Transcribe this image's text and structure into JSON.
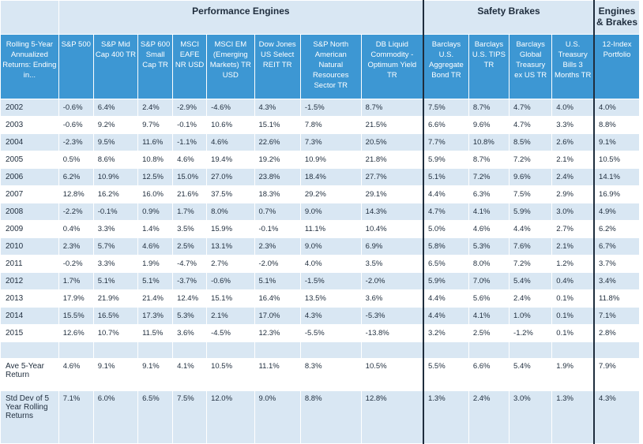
{
  "groups": {
    "engines": "Performance Engines",
    "brakes": "Safety Brakes",
    "both": "Engines & Brakes"
  },
  "columns": [
    "Rolling 5-Year Annualized Returns: Ending in...",
    "S&P 500",
    "S&P Mid Cap 400 TR",
    "S&P 600 Small Cap TR",
    "MSCI EAFE NR USD",
    "MSCI EM (Emerging Markets) TR USD",
    "Dow Jones US Select REIT TR",
    "S&P North American Natural Resources Sector TR",
    "DB Liquid Commodity - Optimum Yield TR",
    "Barclays U.S. Aggregate Bond TR",
    "Barclays U.S. TIPS TR",
    "Barclays Global Treasury ex US TR",
    "U.S. Treasury Bills 3 Months TR",
    "12-Index Portfolio"
  ],
  "rows": [
    [
      "2002",
      "-0.6%",
      "6.4%",
      "2.4%",
      "-2.9%",
      "-4.6%",
      "4.3%",
      "-1.5%",
      "8.7%",
      "7.5%",
      "8.7%",
      "4.7%",
      "4.0%",
      "4.0%"
    ],
    [
      "2003",
      "-0.6%",
      "9.2%",
      "9.7%",
      "-0.1%",
      "10.6%",
      "15.1%",
      "7.8%",
      "21.5%",
      "6.6%",
      "9.6%",
      "4.7%",
      "3.3%",
      "8.8%"
    ],
    [
      "2004",
      "-2.3%",
      "9.5%",
      "11.6%",
      "-1.1%",
      "4.6%",
      "22.6%",
      "7.3%",
      "20.5%",
      "7.7%",
      "10.8%",
      "8.5%",
      "2.6%",
      "9.1%"
    ],
    [
      "2005",
      "0.5%",
      "8.6%",
      "10.8%",
      "4.6%",
      "19.4%",
      "19.2%",
      "10.9%",
      "21.8%",
      "5.9%",
      "8.7%",
      "7.2%",
      "2.1%",
      "10.5%"
    ],
    [
      "2006",
      "6.2%",
      "10.9%",
      "12.5%",
      "15.0%",
      "27.0%",
      "23.8%",
      "18.4%",
      "27.7%",
      "5.1%",
      "7.2%",
      "9.6%",
      "2.4%",
      "14.1%"
    ],
    [
      "2007",
      "12.8%",
      "16.2%",
      "16.0%",
      "21.6%",
      "37.5%",
      "18.3%",
      "29.2%",
      "29.1%",
      "4.4%",
      "6.3%",
      "7.5%",
      "2.9%",
      "16.9%"
    ],
    [
      "2008",
      "-2.2%",
      "-0.1%",
      "0.9%",
      "1.7%",
      "8.0%",
      "0.7%",
      "9.0%",
      "14.3%",
      "4.7%",
      "4.1%",
      "5.9%",
      "3.0%",
      "4.9%"
    ],
    [
      "2009",
      "0.4%",
      "3.3%",
      "1.4%",
      "3.5%",
      "15.9%",
      "-0.1%",
      "11.1%",
      "10.4%",
      "5.0%",
      "4.6%",
      "4.4%",
      "2.7%",
      "6.2%"
    ],
    [
      "2010",
      "2.3%",
      "5.7%",
      "4.6%",
      "2.5%",
      "13.1%",
      "2.3%",
      "9.0%",
      "6.9%",
      "5.8%",
      "5.3%",
      "7.6%",
      "2.1%",
      "6.7%"
    ],
    [
      "2011",
      "-0.2%",
      "3.3%",
      "1.9%",
      "-4.7%",
      "2.7%",
      "-2.0%",
      "4.0%",
      "3.5%",
      "6.5%",
      "8.0%",
      "7.2%",
      "1.2%",
      "3.7%"
    ],
    [
      "2012",
      "1.7%",
      "5.1%",
      "5.1%",
      "-3.7%",
      "-0.6%",
      "5.1%",
      "-1.5%",
      "-2.0%",
      "5.9%",
      "7.0%",
      "5.4%",
      "0.4%",
      "3.4%"
    ],
    [
      "2013",
      "17.9%",
      "21.9%",
      "21.4%",
      "12.4%",
      "15.1%",
      "16.4%",
      "13.5%",
      "3.6%",
      "4.4%",
      "5.6%",
      "2.4%",
      "0.1%",
      "11.8%"
    ],
    [
      "2014",
      "15.5%",
      "16.5%",
      "17.3%",
      "5.3%",
      "2.1%",
      "17.0%",
      "4.3%",
      "-5.3%",
      "4.4%",
      "4.1%",
      "1.0%",
      "0.1%",
      "7.1%"
    ],
    [
      "2015",
      "12.6%",
      "10.7%",
      "11.5%",
      "3.6%",
      "-4.5%",
      "12.3%",
      "-5.5%",
      "-13.8%",
      "3.2%",
      "2.5%",
      "-1.2%",
      "0.1%",
      "2.8%"
    ]
  ],
  "summary": [
    [
      "Ave 5-Year Return",
      "4.6%",
      "9.1%",
      "9.1%",
      "4.1%",
      "10.5%",
      "11.1%",
      "8.3%",
      "10.5%",
      "5.5%",
      "6.6%",
      "5.4%",
      "1.9%",
      "7.9%"
    ],
    [
      "Std Dev of 5 Year Rolling Returns",
      "7.1%",
      "6.0%",
      "6.5%",
      "7.5%",
      "12.0%",
      "9.0%",
      "8.8%",
      "12.8%",
      "1.3%",
      "2.4%",
      "3.0%",
      "1.3%",
      "4.3%"
    ]
  ]
}
